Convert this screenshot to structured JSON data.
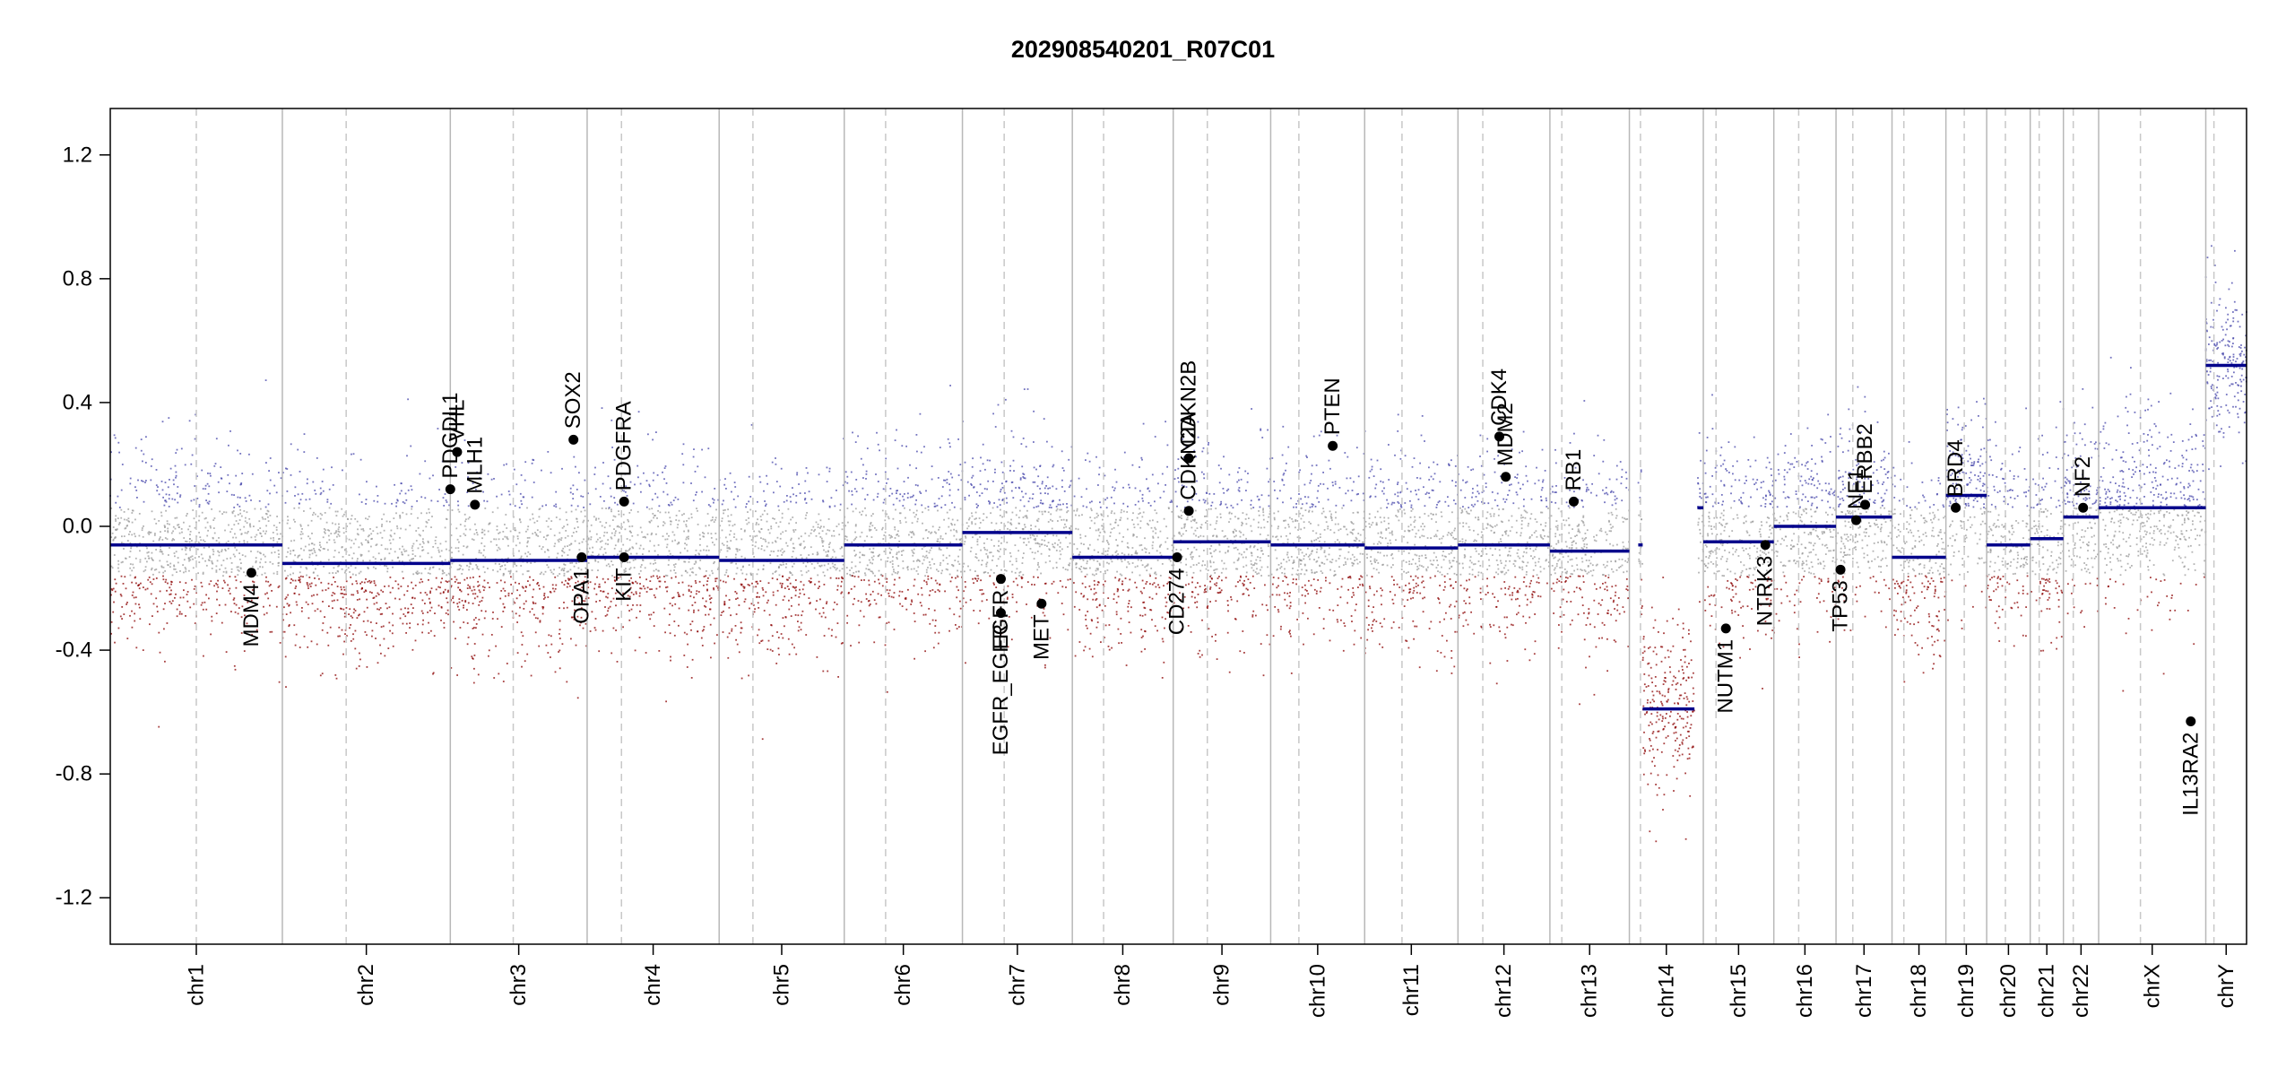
{
  "chart_data": {
    "type": "scatter",
    "title": "202908540201_R07C01",
    "xlabel": "",
    "ylabel": "",
    "ylim": [
      -1.35,
      1.35
    ],
    "yticks": [
      -1.2,
      -0.8,
      -0.4,
      0.0,
      0.4,
      0.8,
      1.2
    ],
    "ytick_labels": [
      "-1.2",
      "-0.8",
      "-0.4",
      "0.0",
      "0.4",
      "0.8",
      "1.2"
    ],
    "grid": false,
    "chromosomes": [
      {
        "name": "chr1",
        "size": 249,
        "centromere": 0.5
      },
      {
        "name": "chr2",
        "size": 243,
        "centromere": 0.38
      },
      {
        "name": "chr3",
        "size": 198,
        "centromere": 0.46
      },
      {
        "name": "chr4",
        "size": 191,
        "centromere": 0.26
      },
      {
        "name": "chr5",
        "size": 181,
        "centromere": 0.27
      },
      {
        "name": "chr6",
        "size": 171,
        "centromere": 0.35
      },
      {
        "name": "chr7",
        "size": 159,
        "centromere": 0.38
      },
      {
        "name": "chr8",
        "size": 146,
        "centromere": 0.31
      },
      {
        "name": "chr9",
        "size": 141,
        "centromere": 0.35
      },
      {
        "name": "chr10",
        "size": 136,
        "centromere": 0.3
      },
      {
        "name": "chr11",
        "size": 135,
        "centromere": 0.4
      },
      {
        "name": "chr12",
        "size": 133,
        "centromere": 0.27
      },
      {
        "name": "chr13",
        "size": 115,
        "centromere": 0.15
      },
      {
        "name": "chr14",
        "size": 107,
        "centromere": 0.15
      },
      {
        "name": "chr15",
        "size": 102,
        "centromere": 0.18
      },
      {
        "name": "chr16",
        "size": 90,
        "centromere": 0.4
      },
      {
        "name": "chr17",
        "size": 81,
        "centromere": 0.3
      },
      {
        "name": "chr18",
        "size": 78,
        "centromere": 0.22
      },
      {
        "name": "chr19",
        "size": 59,
        "centromere": 0.45
      },
      {
        "name": "chr20",
        "size": 63,
        "centromere": 0.43
      },
      {
        "name": "chr21",
        "size": 48,
        "centromere": 0.27
      },
      {
        "name": "chr22",
        "size": 51,
        "centromere": 0.28
      },
      {
        "name": "chrX",
        "size": 155,
        "centromere": 0.39
      },
      {
        "name": "chrY",
        "size": 59,
        "centromere": 0.2
      }
    ],
    "segments": [
      {
        "chrom": "chr1",
        "start": 0.0,
        "end": 1.0,
        "value": -0.06
      },
      {
        "chrom": "chr2",
        "start": 0.0,
        "end": 1.0,
        "value": -0.12
      },
      {
        "chrom": "chr3",
        "start": 0.0,
        "end": 1.0,
        "value": -0.11
      },
      {
        "chrom": "chr4",
        "start": 0.0,
        "end": 1.0,
        "value": -0.1
      },
      {
        "chrom": "chr5",
        "start": 0.0,
        "end": 1.0,
        "value": -0.11
      },
      {
        "chrom": "chr6",
        "start": 0.0,
        "end": 1.0,
        "value": -0.06
      },
      {
        "chrom": "chr7",
        "start": 0.0,
        "end": 1.0,
        "value": -0.02
      },
      {
        "chrom": "chr8",
        "start": 0.0,
        "end": 1.0,
        "value": -0.1
      },
      {
        "chrom": "chr9",
        "start": 0.0,
        "end": 1.0,
        "value": -0.05
      },
      {
        "chrom": "chr10",
        "start": 0.0,
        "end": 1.0,
        "value": -0.06
      },
      {
        "chrom": "chr11",
        "start": 0.0,
        "end": 1.0,
        "value": -0.07
      },
      {
        "chrom": "chr12",
        "start": 0.0,
        "end": 1.0,
        "value": -0.06
      },
      {
        "chrom": "chr13",
        "start": 0.0,
        "end": 1.0,
        "value": -0.08
      },
      {
        "chrom": "chr14",
        "start": 0.12,
        "end": 0.18,
        "value": -0.06
      },
      {
        "chrom": "chr14",
        "start": 0.18,
        "end": 0.88,
        "value": -0.59
      },
      {
        "chrom": "chr14",
        "start": 0.92,
        "end": 1.0,
        "value": 0.06
      },
      {
        "chrom": "chr15",
        "start": 0.0,
        "end": 1.0,
        "value": -0.05
      },
      {
        "chrom": "chr16",
        "start": 0.0,
        "end": 1.0,
        "value": 0.0
      },
      {
        "chrom": "chr17",
        "start": 0.0,
        "end": 1.0,
        "value": 0.03
      },
      {
        "chrom": "chr18",
        "start": 0.0,
        "end": 1.0,
        "value": -0.1
      },
      {
        "chrom": "chr19",
        "start": 0.0,
        "end": 1.0,
        "value": 0.1
      },
      {
        "chrom": "chr20",
        "start": 0.0,
        "end": 1.0,
        "value": -0.06
      },
      {
        "chrom": "chr21",
        "start": 0.0,
        "end": 1.0,
        "value": -0.04
      },
      {
        "chrom": "chr22",
        "start": 0.0,
        "end": 1.0,
        "value": 0.03
      },
      {
        "chrom": "chrX",
        "start": 0.0,
        "end": 1.0,
        "value": 0.06
      },
      {
        "chrom": "chrY",
        "start": 0.0,
        "end": 1.0,
        "value": 0.52
      }
    ],
    "genes": [
      {
        "name": "MDM4",
        "chrom": "chr1",
        "pos": 0.82,
        "value": -0.15
      },
      {
        "name": "PDGDL1",
        "chrom": "chr3",
        "pos": 0.0,
        "value": 0.12
      },
      {
        "name": "VHL",
        "chrom": "chr3",
        "pos": 0.05,
        "value": 0.24
      },
      {
        "name": "MLH1",
        "chrom": "chr3",
        "pos": 0.18,
        "value": 0.07
      },
      {
        "name": "SOX2",
        "chrom": "chr3",
        "pos": 0.9,
        "value": 0.28
      },
      {
        "name": "OPA1",
        "chrom": "chr3",
        "pos": 0.96,
        "value": -0.1
      },
      {
        "name": "PDGFRA",
        "chrom": "chr4",
        "pos": 0.28,
        "value": 0.08
      },
      {
        "name": "KIT",
        "chrom": "chr4",
        "pos": 0.28,
        "value": -0.1
      },
      {
        "name": "EGFR",
        "chrom": "chr7",
        "pos": 0.35,
        "value": -0.17
      },
      {
        "name": "EGFR_EGFR",
        "chrom": "chr7",
        "pos": 0.35,
        "value": -0.28
      },
      {
        "name": "MET",
        "chrom": "chr7",
        "pos": 0.72,
        "value": -0.25
      },
      {
        "name": "CDKN2B",
        "chrom": "chr9",
        "pos": 0.16,
        "value": 0.22
      },
      {
        "name": "CDKN2A",
        "chrom": "chr9",
        "pos": 0.16,
        "value": 0.05
      },
      {
        "name": "CD274",
        "chrom": "chr9",
        "pos": 0.04,
        "value": -0.1
      },
      {
        "name": "PTEN",
        "chrom": "chr10",
        "pos": 0.66,
        "value": 0.26
      },
      {
        "name": "CDK4",
        "chrom": "chr12",
        "pos": 0.45,
        "value": 0.29
      },
      {
        "name": "MDM2",
        "chrom": "chr12",
        "pos": 0.52,
        "value": 0.16
      },
      {
        "name": "RB1",
        "chrom": "chr13",
        "pos": 0.3,
        "value": 0.08
      },
      {
        "name": "NUTM1",
        "chrom": "chr15",
        "pos": 0.32,
        "value": -0.33
      },
      {
        "name": "NTRK3",
        "chrom": "chr15",
        "pos": 0.88,
        "value": -0.06
      },
      {
        "name": "TP53",
        "chrom": "chr17",
        "pos": 0.08,
        "value": -0.14
      },
      {
        "name": "NF1",
        "chrom": "chr17",
        "pos": 0.36,
        "value": 0.02
      },
      {
        "name": "ERBB2",
        "chrom": "chr17",
        "pos": 0.52,
        "value": 0.07
      },
      {
        "name": "BRD4",
        "chrom": "chr19",
        "pos": 0.24,
        "value": 0.06
      },
      {
        "name": "NF2",
        "chrom": "chr22",
        "pos": 0.56,
        "value": 0.06
      },
      {
        "name": "IL13RA2",
        "chrom": "chrX",
        "pos": 0.86,
        "value": -0.63
      }
    ],
    "colors": {
      "segment": "#00008b",
      "gain_points": "#4444aa",
      "loss_points": "#8b0000",
      "neutral_points": "#9a9a9a",
      "gene_marker": "#000000"
    }
  }
}
